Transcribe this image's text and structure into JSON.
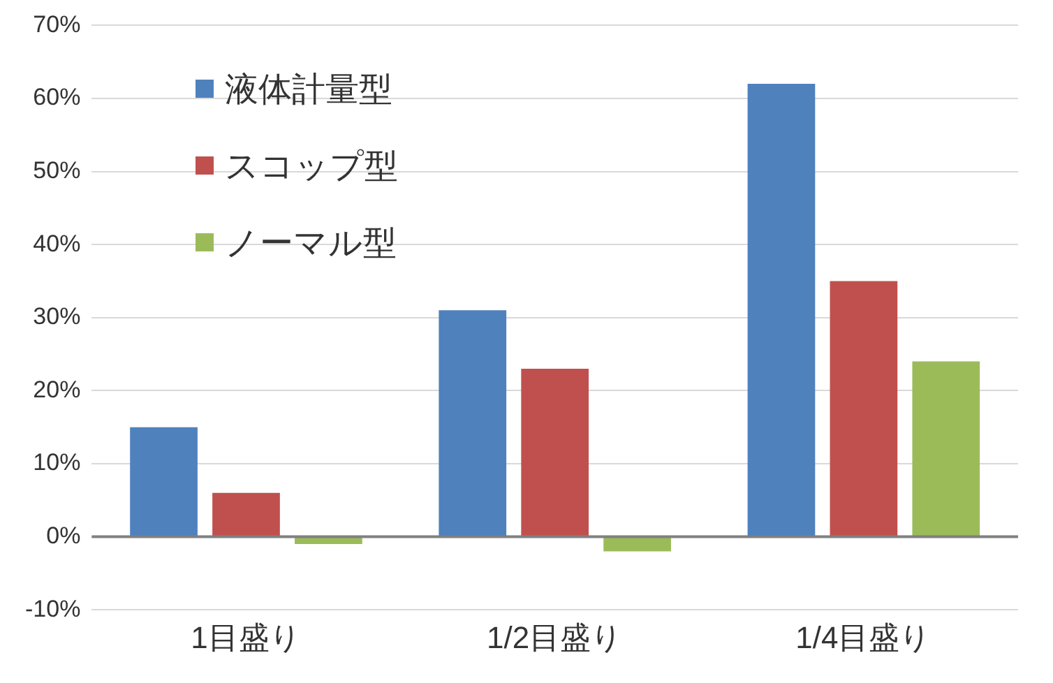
{
  "chart_data": {
    "type": "bar",
    "categories": [
      "1目盛り",
      "1/2目盛り",
      "1/4目盛り"
    ],
    "series": [
      {
        "name": "液体計量型",
        "color": "#4f81bd",
        "values": [
          15,
          31,
          62
        ]
      },
      {
        "name": "スコップ型",
        "color": "#c0504d",
        "values": [
          6,
          23,
          35
        ]
      },
      {
        "name": "ノーマル型",
        "color": "#9bbb59",
        "values": [
          -1,
          -2,
          24
        ]
      }
    ],
    "ylim": [
      -10,
      70
    ],
    "yticks": [
      {
        "value": -10,
        "label": "-10%"
      },
      {
        "value": 0,
        "label": "0%"
      },
      {
        "value": 10,
        "label": "10%"
      },
      {
        "value": 20,
        "label": "20%"
      },
      {
        "value": 30,
        "label": "30%"
      },
      {
        "value": 40,
        "label": "40%"
      },
      {
        "value": 50,
        "label": "50%"
      },
      {
        "value": 60,
        "label": "60%"
      },
      {
        "value": 70,
        "label": "70%"
      }
    ],
    "grid": "y",
    "legend": "top left"
  }
}
